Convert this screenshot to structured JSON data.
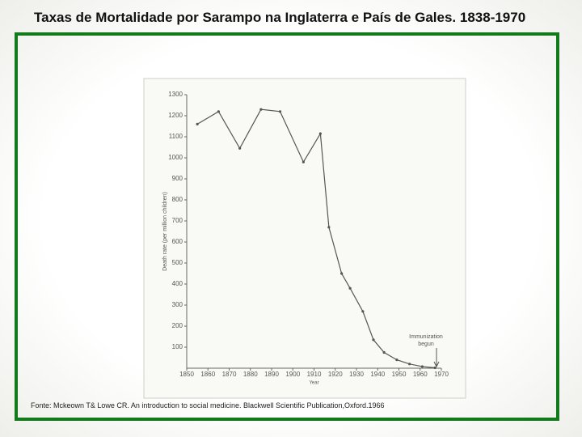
{
  "slide": {
    "title": "Taxas de Mortalidade por Sarampo na Inglaterra e País de Gales. 1838-1970",
    "source": "Fonte: Mckeown T& Lowe CR. An introduction to social medicine. Blackwell Scientific Publication,Oxford.1966"
  },
  "chart_data": {
    "type": "line",
    "x_label": "Year",
    "y_label": "Death rate (per million children)",
    "annotation": [
      "Immunization",
      "begun"
    ],
    "x": [
      1855,
      1865,
      1875,
      1885,
      1894,
      1905,
      1913,
      1917,
      1923,
      1927,
      1933,
      1938,
      1943,
      1949,
      1955,
      1961,
      1967
    ],
    "series": [
      {
        "name": "Death rate",
        "color": "#555555",
        "values": [
          1160,
          1220,
          1045,
          1230,
          1220,
          980,
          1115,
          670,
          450,
          380,
          270,
          135,
          75,
          40,
          20,
          8,
          2
        ]
      }
    ],
    "xlim": [
      1850,
      1970
    ],
    "xticks": [
      1850,
      1860,
      1870,
      1880,
      1890,
      1900,
      1910,
      1920,
      1930,
      1940,
      1950,
      1960,
      1970
    ],
    "ylim": [
      0,
      1300
    ],
    "yticks": [
      100,
      200,
      300,
      400,
      500,
      600,
      700,
      800,
      900,
      1000,
      1100,
      1200,
      1300
    ]
  }
}
